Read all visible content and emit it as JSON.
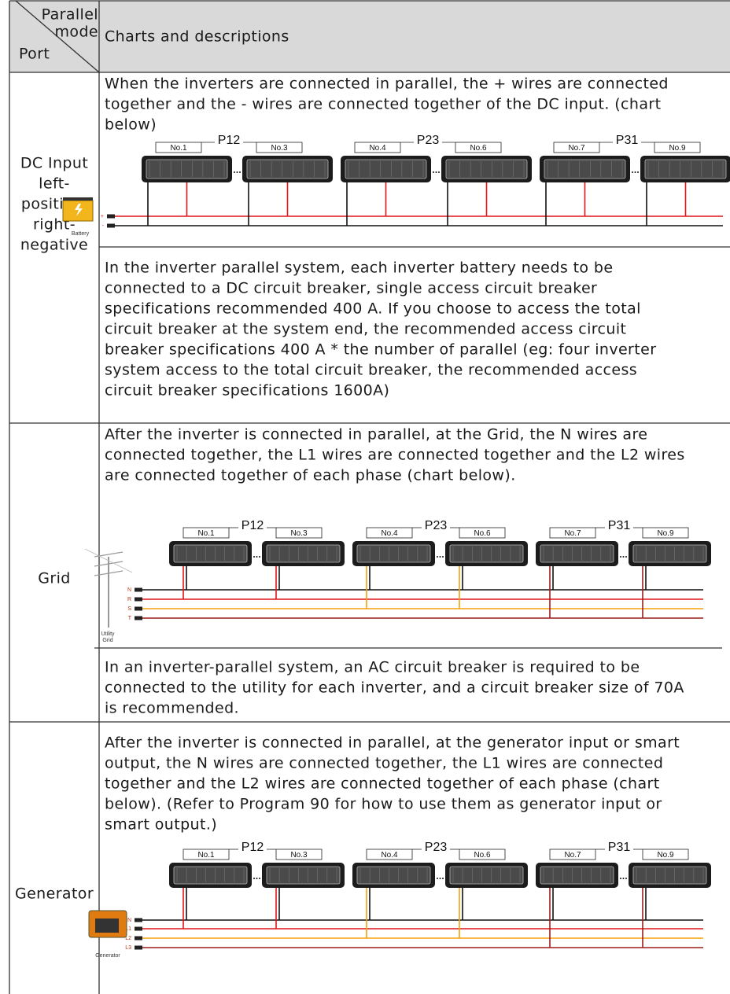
{
  "header": {
    "corner_top": [
      "Parallel",
      "mode"
    ],
    "corner_bottom": "Port",
    "title": "Charts and descriptions"
  },
  "rows": [
    {
      "port": [
        "DC Input",
        "left-",
        "positive,",
        "right-",
        "negative"
      ],
      "intro": [
        "When the inverters are connected in parallel, the + wires are connected",
        "together and the - wires are connected together of the DC input. (chart",
        "below)"
      ],
      "diagram": {
        "groups": [
          {
            "label": "P12",
            "units": [
              "No.1",
              "No.3"
            ]
          },
          {
            "label": "P23",
            "units": [
              "No.4",
              "No.6"
            ]
          },
          {
            "label": "P31",
            "units": [
              "No.7",
              "No.9"
            ]
          }
        ],
        "source": [
          "Battery"
        ],
        "terminals": [
          "+",
          "-"
        ]
      },
      "note": [
        "In the inverter parallel system, each inverter battery needs to be",
        "connected to a DC circuit breaker, single access circuit breaker",
        "specifications recommended 400 A. If you choose to access the total",
        "circuit breaker at the system end, the recommended access circuit",
        "breaker specifications 400 A * the number of parallel (eg: four inverter",
        "system access to the total circuit breaker, the recommended access",
        "circuit breaker specifications 1600A)"
      ]
    },
    {
      "port": [
        "Grid"
      ],
      "intro": [
        "After the inverter is connected in parallel, at the Grid, the N wires are",
        "connected together, the L1 wires are connected together and the L2 wires",
        "are connected together of each phase (chart below)."
      ],
      "diagram": {
        "groups": [
          {
            "label": "P12",
            "units": [
              "No.1",
              "No.3"
            ]
          },
          {
            "label": "P23",
            "units": [
              "No.4",
              "No.6"
            ]
          },
          {
            "label": "P31",
            "units": [
              "No.7",
              "No.9"
            ]
          }
        ],
        "source": [
          "Utility",
          "Grid"
        ],
        "terminals": [
          "N",
          "R",
          "S",
          "T"
        ]
      },
      "note": [
        "In an inverter-parallel system, an AC circuit breaker is required to be",
        "connected to the utility for each inverter, and a circuit breaker size of 70A",
        "is recommended."
      ]
    },
    {
      "port": [
        "Generator"
      ],
      "intro": [
        "After the inverter is connected in parallel, at the generator input or smart",
        "output, the N wires are connected together, the L1 wires are connected",
        "together and the L2 wires are connected together of each phase (chart",
        "below). (Refer to Program 90 for how to use them as generator input or",
        "smart output.)"
      ],
      "diagram": {
        "groups": [
          {
            "label": "P12",
            "units": [
              "No.1",
              "No.3"
            ]
          },
          {
            "label": "P23",
            "units": [
              "No.4",
              "No.6"
            ]
          },
          {
            "label": "P31",
            "units": [
              "No.7",
              "No.9"
            ]
          }
        ],
        "source": [
          "Generator"
        ],
        "terminals": [
          "N",
          "L1",
          "L2",
          "L3"
        ]
      }
    }
  ]
}
